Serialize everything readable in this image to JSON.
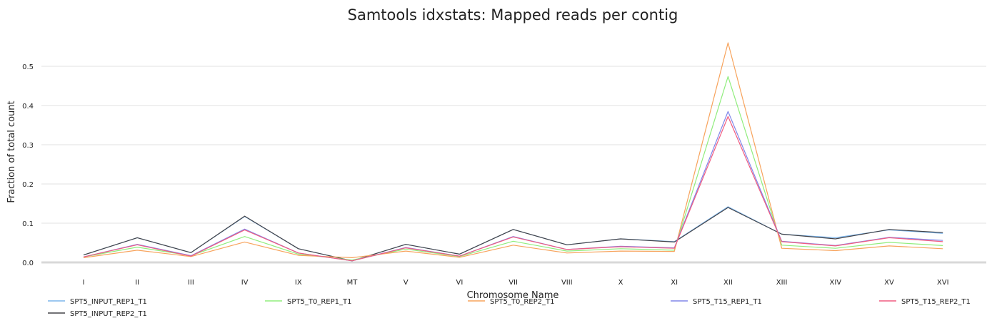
{
  "chart_data": {
    "type": "line",
    "title": "Samtools idxstats: Mapped reads per contig",
    "xlabel": "Chromosome Name",
    "ylabel": "Fraction of total count",
    "categories": [
      "I",
      "II",
      "III",
      "IV",
      "IX",
      "MT",
      "V",
      "VI",
      "VII",
      "VIII",
      "X",
      "XI",
      "XII",
      "XIII",
      "XIV",
      "XV",
      "XVI"
    ],
    "ylim": [
      0,
      0.58
    ],
    "yticks": [
      "0.0",
      "0.1",
      "0.2",
      "0.3",
      "0.4",
      "0.5"
    ],
    "grid": true,
    "legend_position": "bottom",
    "series": [
      {
        "name": "SPT5_INPUT_REP1_T1",
        "color": "#7cb5ec",
        "values": [
          0.019,
          0.063,
          0.025,
          0.117,
          0.035,
          0.004,
          0.046,
          0.021,
          0.084,
          0.045,
          0.06,
          0.053,
          0.142,
          0.072,
          0.063,
          0.083,
          0.074
        ]
      },
      {
        "name": "SPT5_INPUT_REP2_T1",
        "color": "#434348",
        "values": [
          0.019,
          0.063,
          0.025,
          0.118,
          0.035,
          0.004,
          0.046,
          0.021,
          0.084,
          0.045,
          0.06,
          0.052,
          0.14,
          0.072,
          0.06,
          0.084,
          0.076
        ]
      },
      {
        "name": "SPT5_T0_REP1_T1",
        "color": "#90ed7d",
        "values": [
          0.014,
          0.039,
          0.017,
          0.066,
          0.021,
          0.006,
          0.034,
          0.015,
          0.054,
          0.029,
          0.035,
          0.031,
          0.474,
          0.044,
          0.036,
          0.051,
          0.043
        ]
      },
      {
        "name": "SPT5_T0_REP2_T1",
        "color": "#f7a35c",
        "values": [
          0.012,
          0.031,
          0.015,
          0.052,
          0.018,
          0.012,
          0.029,
          0.013,
          0.044,
          0.024,
          0.029,
          0.028,
          0.56,
          0.036,
          0.03,
          0.042,
          0.035
        ]
      },
      {
        "name": "SPT5_T15_REP1_T1",
        "color": "#8085e9",
        "values": [
          0.014,
          0.046,
          0.017,
          0.085,
          0.024,
          0.004,
          0.038,
          0.016,
          0.066,
          0.033,
          0.041,
          0.037,
          0.385,
          0.054,
          0.043,
          0.064,
          0.056
        ]
      },
      {
        "name": "SPT5_T15_REP2_T1",
        "color": "#f15c80",
        "values": [
          0.014,
          0.045,
          0.016,
          0.083,
          0.024,
          0.004,
          0.037,
          0.016,
          0.065,
          0.033,
          0.04,
          0.036,
          0.372,
          0.053,
          0.042,
          0.063,
          0.053
        ]
      }
    ]
  }
}
